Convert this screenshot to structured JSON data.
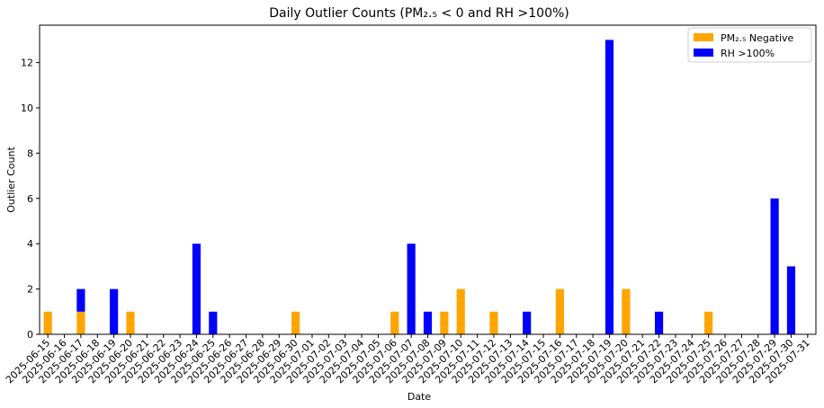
{
  "chart_data": {
    "type": "bar",
    "stacked": true,
    "title": "Daily Outlier Counts (PM₂.₅ < 0 and RH >100%)",
    "xlabel": "Date",
    "ylabel": "Outlier Count",
    "ylim": [
      0,
      13.65
    ],
    "yticks": [
      0,
      2,
      4,
      6,
      8,
      10,
      12
    ],
    "legend_position": "top-right",
    "grid": false,
    "categories": [
      "2025-06-15",
      "2025-06-16",
      "2025-06-17",
      "2025-06-18",
      "2025-06-19",
      "2025-06-20",
      "2025-06-21",
      "2025-06-22",
      "2025-06-23",
      "2025-06-24",
      "2025-06-25",
      "2025-06-26",
      "2025-06-27",
      "2025-06-28",
      "2025-06-29",
      "2025-06-30",
      "2025-07-01",
      "2025-07-02",
      "2025-07-03",
      "2025-07-04",
      "2025-07-05",
      "2025-07-06",
      "2025-07-07",
      "2025-07-08",
      "2025-07-09",
      "2025-07-10",
      "2025-07-11",
      "2025-07-12",
      "2025-07-13",
      "2025-07-14",
      "2025-07-15",
      "2025-07-16",
      "2025-07-17",
      "2025-07-18",
      "2025-07-19",
      "2025-07-20",
      "2025-07-21",
      "2025-07-22",
      "2025-07-23",
      "2025-07-24",
      "2025-07-25",
      "2025-07-26",
      "2025-07-27",
      "2025-07-28",
      "2025-07-29",
      "2025-07-30",
      "2025-07-31"
    ],
    "series": [
      {
        "name": "PM₂.₅ Negative",
        "color": "#ffa500",
        "values": [
          1,
          0,
          1,
          0,
          0,
          1,
          0,
          0,
          0,
          0,
          0,
          0,
          0,
          0,
          0,
          1,
          0,
          0,
          0,
          0,
          0,
          1,
          0,
          0,
          1,
          2,
          0,
          1,
          0,
          0,
          0,
          2,
          0,
          0,
          0,
          2,
          0,
          0,
          0,
          0,
          1,
          0,
          0,
          0,
          0,
          0,
          0
        ]
      },
      {
        "name": "RH >100%",
        "color": "#0000ff",
        "values": [
          0,
          0,
          1,
          0,
          2,
          0,
          0,
          0,
          0,
          4,
          1,
          0,
          0,
          0,
          0,
          0,
          0,
          0,
          0,
          0,
          0,
          0,
          4,
          1,
          0,
          0,
          0,
          0,
          0,
          1,
          0,
          0,
          0,
          0,
          13,
          0,
          0,
          1,
          0,
          0,
          0,
          0,
          0,
          0,
          6,
          3,
          0
        ]
      }
    ]
  }
}
